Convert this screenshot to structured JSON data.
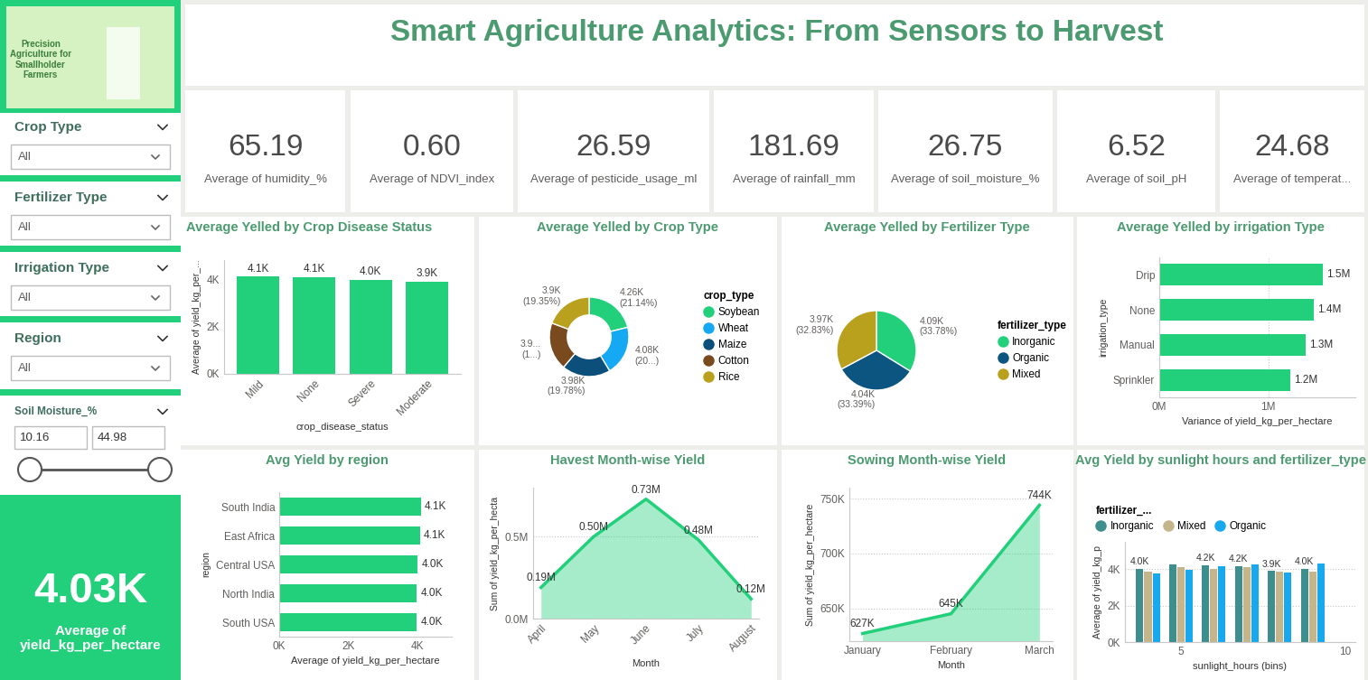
{
  "title": "Smart Agriculture Analytics: From Sensors to Harvest",
  "banner": "Precision\nAgriculture for\nSmallholder\nFarmers",
  "filters": [
    {
      "label": "Crop Type",
      "selection": "All"
    },
    {
      "label": "Fertilizer Type",
      "selection": "All"
    },
    {
      "label": "Irrigation Type",
      "selection": "All"
    },
    {
      "label": "Region",
      "selection": "All"
    },
    {
      "label": "Soil Moisture_%",
      "range": [
        10.16,
        44.98
      ]
    }
  ],
  "kpis": [
    {
      "value": "65.19",
      "label": "Average of humidity_%"
    },
    {
      "value": "0.60",
      "label": "Average of NDVI_index"
    },
    {
      "value": "26.59",
      "label": "Average of pesticide_usage_ml"
    },
    {
      "value": "181.69",
      "label": "Average of rainfall_mm"
    },
    {
      "value": "26.75",
      "label": "Average of soil_moisture_%"
    },
    {
      "value": "6.52",
      "label": "Average of soil_pH"
    },
    {
      "value": "24.68",
      "label": "Average of temperat..."
    }
  ],
  "headline": {
    "value": "4.03K",
    "label": "Average of yield_kg_per_hectare"
  },
  "chart_data": [
    {
      "type": "bar",
      "title": "Average Yelled by Crop Disease Status",
      "xlabel": "crop_disease_status",
      "ylabel": "Average of yield_kg_per_...",
      "categories": [
        "Mild",
        "None",
        "Severe",
        "Moderate"
      ],
      "values": [
        4100,
        4080,
        3980,
        3900
      ],
      "value_labels": [
        "4.1K",
        "4.1K",
        "4.0K",
        "3.9K"
      ],
      "color": "#22D07B",
      "ylim": [
        0,
        4800
      ],
      "yticks": [
        {
          "value": 0,
          "label": "0K"
        },
        {
          "value": 2000,
          "label": "2K"
        },
        {
          "value": 4000,
          "label": "4K"
        }
      ],
      "data_labels": true,
      "grid": false
    },
    {
      "type": "donut",
      "title": "Average Yelled by Crop Type",
      "categories": [
        "Soybean",
        "Wheat",
        "Maize",
        "Cotton",
        "Rice"
      ],
      "values": [
        4260,
        4080,
        3980,
        3932,
        3900
      ],
      "value_labels": [
        "4.26K\n(21.14%)",
        "4.08K\n(20...)",
        "3.98K\n(19.78%)",
        "3.9...\n(1...)",
        "3.9K\n(19.35%)"
      ],
      "colors": [
        "#22D07B",
        "#14A9F2",
        "#0B4F7A",
        "#7A4A1F",
        "#B9A11E"
      ],
      "legend": "right",
      "legend_title": "crop_type",
      "data_labels": true
    },
    {
      "type": "pie",
      "title": "Average Yelled by Fertilizer Type",
      "categories": [
        "Inorganic",
        "Organic",
        "Mixed"
      ],
      "values": [
        4090,
        4040,
        3970
      ],
      "value_labels": [
        "4.09K\n(33.78%)",
        "4.04K\n(33.39%)",
        "3.97K\n(32.83%)"
      ],
      "colors": [
        "#22D07B",
        "#0B5580",
        "#B9A11E"
      ],
      "legend": "right",
      "legend_title": "fertilizer_type",
      "data_labels": true
    },
    {
      "type": "bar",
      "orientation": "horizontal",
      "title": "Average Yelled by irrigation Type",
      "xlabel": "Variance of yield_kg_per_hectare",
      "ylabel": "irrigation_type",
      "categories": [
        "Drip",
        "None",
        "Manual",
        "Sprinkler"
      ],
      "values": [
        1500000,
        1420000,
        1340000,
        1200000
      ],
      "value_labels": [
        "1.5M",
        "1.4M",
        "1.3M",
        "1.2M"
      ],
      "color": "#22D07B",
      "xlim": [
        0,
        1800000
      ],
      "xticks": [
        {
          "value": 0,
          "label": "0M"
        },
        {
          "value": 1000000,
          "label": "1M"
        }
      ],
      "data_labels": true,
      "grid": true
    },
    {
      "type": "bar",
      "orientation": "horizontal",
      "title": "Avg Yield by region",
      "xlabel": "Average of yield_kg_per_hectare",
      "ylabel": "region",
      "categories": [
        "South India",
        "East Africa",
        "Central USA",
        "North India",
        "South USA"
      ],
      "values": [
        4100,
        4080,
        4010,
        3990,
        3980
      ],
      "value_labels": [
        "4.1K",
        "4.1K",
        "4.0K",
        "4.0K",
        "4.0K"
      ],
      "color": "#22D07B",
      "xlim": [
        0,
        5000
      ],
      "xticks": [
        {
          "value": 0,
          "label": "0K"
        },
        {
          "value": 2000,
          "label": "2K"
        },
        {
          "value": 4000,
          "label": "4K"
        }
      ],
      "data_labels": true,
      "grid": false
    },
    {
      "type": "area",
      "title": "Havest Month-wise Yield",
      "xlabel": "Month",
      "ylabel": "Sum of yield_kg_per_hecta",
      "categories": [
        "April",
        "May",
        "June",
        "July",
        "August"
      ],
      "values": [
        190000,
        500000,
        730000,
        480000,
        120000
      ],
      "value_labels": [
        "0.19M",
        "0.50M",
        "0.73M",
        "0.48M",
        "0.12M"
      ],
      "color": "#22D07B",
      "ylim": [
        0,
        800000
      ],
      "yticks": [
        {
          "value": 0,
          "label": "0.0M"
        },
        {
          "value": 500000,
          "label": "0.5M"
        }
      ],
      "data_labels": true,
      "grid": true
    },
    {
      "type": "area",
      "title": "Sowing Month-wise Yield",
      "xlabel": "Month",
      "ylabel": "Sum of yield_kg_per_hectare",
      "categories": [
        "January",
        "February",
        "March"
      ],
      "values": [
        627000,
        645000,
        744000
      ],
      "value_labels": [
        "627K",
        "645K",
        "744K"
      ],
      "color": "#22D07B",
      "ylim": [
        620000,
        760000
      ],
      "yticks": [
        {
          "value": 650000,
          "label": "650K"
        },
        {
          "value": 700000,
          "label": "700K"
        },
        {
          "value": 750000,
          "label": "750K"
        }
      ],
      "data_labels": true,
      "grid": true
    },
    {
      "type": "bar",
      "title": "Avg Yield by sunlight hours and fertilizer_type",
      "xlabel": "sunlight_hours (bins)",
      "ylabel": "Average of yield_kg_p",
      "x": [
        4,
        5,
        6,
        7,
        8,
        9
      ],
      "series": [
        {
          "name": "Inorganic",
          "color": "#3E8E8E",
          "values": [
            4000,
            4280,
            4200,
            4180,
            3900,
            4000
          ],
          "value_labels": [
            "4.0K",
            null,
            "4.2K",
            "4.2K",
            "3.9K",
            "4.0K"
          ]
        },
        {
          "name": "Mixed",
          "color": "#C4B68A",
          "values": [
            3850,
            4120,
            4010,
            4120,
            3850,
            3880
          ]
        },
        {
          "name": "Organic",
          "color": "#18A8EE",
          "values": [
            3780,
            3950,
            4180,
            4250,
            3800,
            4300
          ]
        }
      ],
      "xlim": [
        3.3,
        10.3
      ],
      "xticks": [
        5,
        10
      ],
      "ylim": [
        0,
        5500
      ],
      "yticks": [
        {
          "value": 0,
          "label": "0K"
        },
        {
          "value": 2000,
          "label": "2K"
        },
        {
          "value": 4000,
          "label": "4K"
        }
      ],
      "legend": "top",
      "legend_title": "fertilizer_...",
      "data_labels": true,
      "grid": true
    }
  ]
}
